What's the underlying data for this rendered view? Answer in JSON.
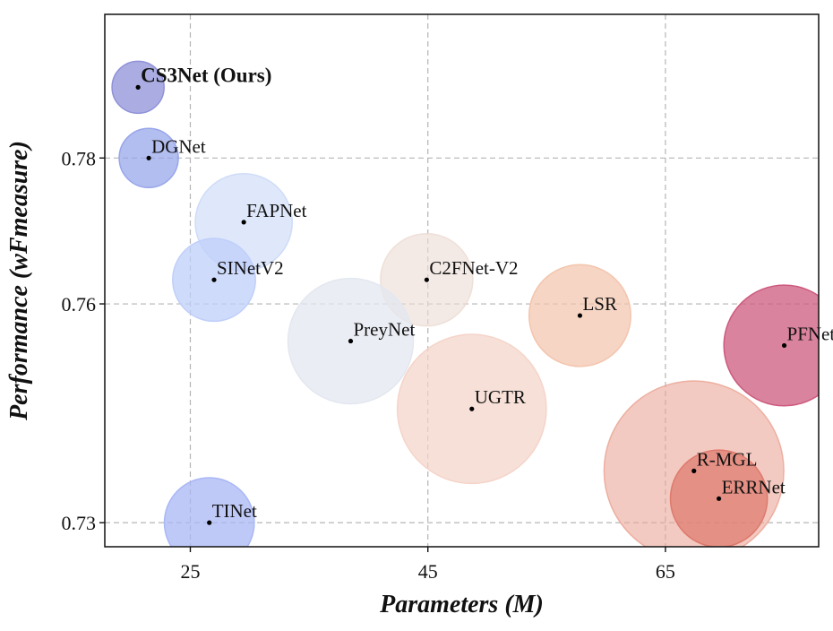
{
  "chart_data": {
    "type": "scatter",
    "xlabel": "Parameters (M)",
    "ylabel": "Performance (wFmeasure)",
    "xlim": [
      17.8,
      77.9
    ],
    "ylim": [
      0.7267,
      0.7997
    ],
    "xticks": [
      25,
      45,
      65
    ],
    "xtick_labels": [
      "25",
      "45",
      "65"
    ],
    "yticks": [
      0.73,
      0.76,
      0.78
    ],
    "ytick_labels": [
      "0.73",
      "0.76",
      "0.78"
    ],
    "grid": true,
    "points": [
      {
        "label": "CS3Net (Ours)",
        "x": 20.6,
        "y": 0.7897,
        "size": 2.2,
        "color": "#8f92d8",
        "opacity": 0.75,
        "bold": true
      },
      {
        "label": "DGNet",
        "x": 21.5,
        "y": 0.78,
        "size": 2.5,
        "color": "#93a2ea",
        "opacity": 0.7,
        "bold": false
      },
      {
        "label": "FAPNet",
        "x": 29.5,
        "y": 0.7712,
        "size": 4.1,
        "color": "#c9d8f7",
        "opacity": 0.6,
        "bold": false
      },
      {
        "label": "SINetV2",
        "x": 27.0,
        "y": 0.7633,
        "size": 3.5,
        "color": "#bfcffa",
        "opacity": 0.75,
        "bold": false
      },
      {
        "label": "C2FNet-V2",
        "x": 44.9,
        "y": 0.7633,
        "size": 3.9,
        "color": "#ecdcd4",
        "opacity": 0.6,
        "bold": false
      },
      {
        "label": "LSR",
        "x": 57.8,
        "y": 0.7584,
        "size": 4.3,
        "color": "#f2c3ab",
        "opacity": 0.7,
        "bold": false
      },
      {
        "label": "PreyNet",
        "x": 38.5,
        "y": 0.7549,
        "size": 5.3,
        "color": "#e3e7ef",
        "opacity": 0.75,
        "bold": false
      },
      {
        "label": "PFNet+",
        "x": 75.0,
        "y": 0.7543,
        "size": 5.1,
        "color": "#cd5a7e",
        "opacity": 0.75,
        "bold": false
      },
      {
        "label": "UGTR",
        "x": 48.7,
        "y": 0.7456,
        "size": 6.3,
        "color": "#f4d3c7",
        "opacity": 0.7,
        "bold": false
      },
      {
        "label": "R-MGL",
        "x": 67.4,
        "y": 0.7371,
        "size": 7.6,
        "color": "#eba697",
        "opacity": 0.6,
        "bold": false
      },
      {
        "label": "ERRNet",
        "x": 69.5,
        "y": 0.7333,
        "size": 4.1,
        "color": "#dd776a",
        "opacity": 0.7,
        "bold": false
      },
      {
        "label": "TINet",
        "x": 26.6,
        "y": 0.73,
        "size": 3.8,
        "color": "#a9b7f5",
        "opacity": 0.75,
        "bold": false
      }
    ]
  }
}
